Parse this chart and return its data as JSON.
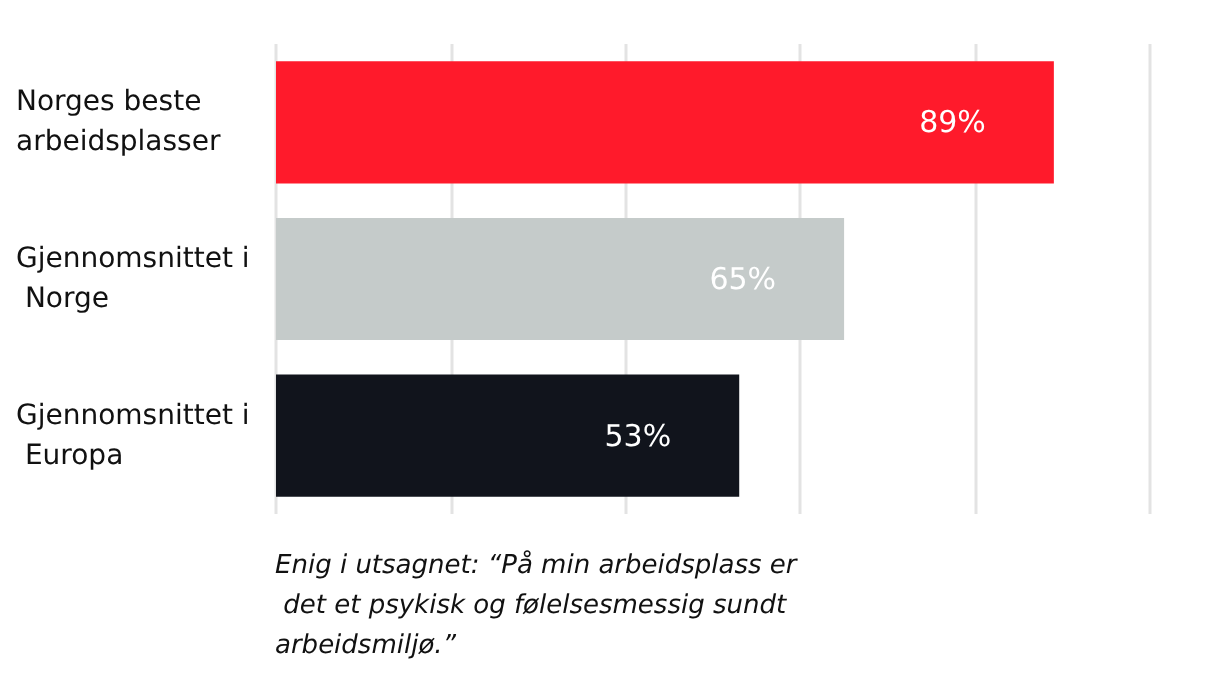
{
  "chart_data": {
    "type": "bar",
    "orientation": "horizontal",
    "categories": [
      "Norges beste arbeidsplasser",
      "Gjennomsnittet i Norge",
      "Gjennomsnittet i Europa"
    ],
    "values": [
      89,
      65,
      53
    ],
    "colors": [
      "#ff1a2b",
      "#c5cbca",
      "#11141c"
    ],
    "value_labels": [
      "89%",
      "65%",
      "53%"
    ],
    "xlim": [
      0,
      100
    ],
    "xticks": [
      {
        "value": 0,
        "label": null
      },
      {
        "value": 20,
        "label": null
      },
      {
        "value": 40,
        "label": null
      },
      {
        "value": 60,
        "label": null
      },
      {
        "value": 80,
        "label": null
      },
      {
        "value": 100,
        "label": null
      }
    ],
    "grid": "x",
    "tick_labels": "y",
    "annotations": [
      "Enig i utsagnet: “På min arbeidsplass er det et psykisk og følelsesmessig sundt arbeidsmiljø.”"
    ]
  }
}
